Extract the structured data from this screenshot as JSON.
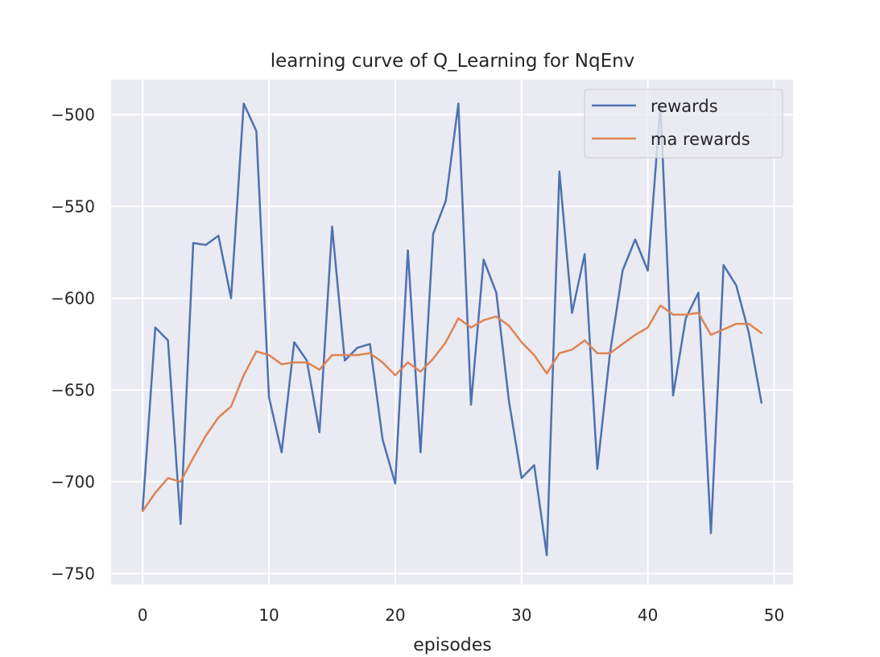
{
  "chart_data": {
    "type": "line",
    "title": "learning curve of Q_Learning for NqEnv",
    "xlabel": "episodes",
    "ylabel": "",
    "xlim": [
      -2.5,
      51.5
    ],
    "ylim": [
      -756,
      -481
    ],
    "xticks": [
      0,
      10,
      20,
      30,
      40,
      50
    ],
    "yticks": [
      -750,
      -700,
      -650,
      -600,
      -550,
      -500
    ],
    "xtick_labels": [
      "0",
      "10",
      "20",
      "30",
      "40",
      "50"
    ],
    "ytick_labels": [
      "−750",
      "−700",
      "−650",
      "−600",
      "−550",
      "−500"
    ],
    "grid": true,
    "background": "#eaeaf2",
    "legend_position": "top-right",
    "x": [
      0,
      1,
      2,
      3,
      4,
      5,
      6,
      7,
      8,
      9,
      10,
      11,
      12,
      13,
      14,
      15,
      16,
      17,
      18,
      19,
      20,
      21,
      22,
      23,
      24,
      25,
      26,
      27,
      28,
      29,
      30,
      31,
      32,
      33,
      34,
      35,
      36,
      37,
      38,
      39,
      40,
      41,
      42,
      43,
      44,
      45,
      46,
      47,
      48,
      49
    ],
    "series": [
      {
        "name": "rewards",
        "color": "#4c72b0",
        "values": [
          -715,
          -616,
          -623,
          -723,
          -570,
          -571,
          -566,
          -600,
          -494,
          -509,
          -654,
          -684,
          -624,
          -634,
          -673,
          -561,
          -634,
          -627,
          -625,
          -677,
          -701,
          -574,
          -684,
          -565,
          -547,
          -494,
          -658,
          -579,
          -597,
          -656,
          -698,
          -691,
          -740,
          -531,
          -608,
          -576,
          -693,
          -630,
          -585,
          -568,
          -585,
          -495,
          -653,
          -611,
          -597,
          -728,
          -582,
          -593,
          -619,
          -657
        ]
      },
      {
        "name": "ma rewards",
        "color": "#dd8452",
        "values": [
          -716,
          -706,
          -698,
          -700,
          -687,
          -675,
          -665,
          -659,
          -642,
          -629,
          -631,
          -636,
          -635,
          -635,
          -639,
          -631,
          -631,
          -631,
          -630,
          -635,
          -642,
          -635,
          -640,
          -633,
          -624,
          -611,
          -616,
          -612,
          -610,
          -615,
          -624,
          -631,
          -641,
          -630,
          -628,
          -623,
          -630,
          -630,
          -625,
          -620,
          -616,
          -604,
          -609,
          -609,
          -608,
          -620,
          -617,
          -614,
          -614,
          -619
        ]
      }
    ]
  }
}
